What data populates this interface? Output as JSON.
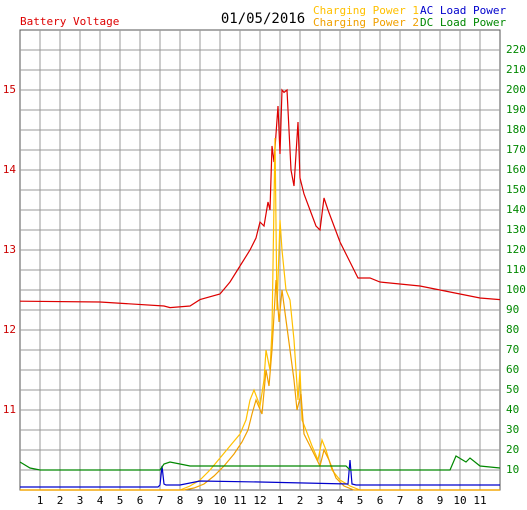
{
  "chart_data": {
    "type": "line",
    "title": "01/05/2016",
    "xlim": [
      0,
      24
    ],
    "xticks": [
      1,
      2,
      3,
      4,
      5,
      6,
      7,
      8,
      9,
      10,
      11,
      12,
      {
        "value": 13,
        "label": "1"
      },
      {
        "value": 14,
        "label": "2"
      },
      {
        "value": 15,
        "label": "3"
      },
      {
        "value": 16,
        "label": "4"
      },
      {
        "value": 17,
        "label": "5"
      },
      {
        "value": 18,
        "label": "6"
      },
      {
        "value": 19,
        "label": "7"
      },
      {
        "value": 20,
        "label": "8"
      },
      {
        "value": 21,
        "label": "9"
      },
      {
        "value": 22,
        "label": "10"
      },
      {
        "value": 23,
        "label": "11"
      }
    ],
    "ylim": [
      10,
      15.75
    ],
    "yticks": [
      11,
      12,
      13,
      14,
      15
    ],
    "y2lim": [
      0,
      230
    ],
    "y2ticks": [
      10,
      20,
      30,
      40,
      50,
      60,
      70,
      80,
      90,
      100,
      110,
      120,
      130,
      140,
      150,
      160,
      170,
      180,
      190,
      200,
      210,
      220
    ],
    "grid": true,
    "series": [
      {
        "name": "Battery Voltage",
        "color": "#dd0000",
        "axis": "y",
        "x": [
          0,
          4,
          7.2,
          7.5,
          8.5,
          9,
          10,
          10.5,
          11,
          11.5,
          11.8,
          12,
          12.2,
          12.4,
          12.5,
          12.6,
          12.7,
          12.9,
          13.0,
          13.1,
          13.2,
          13.35,
          13.45,
          13.55,
          13.7,
          13.9,
          14.0,
          14.2,
          14.5,
          14.8,
          15.0,
          15.2,
          15.4,
          15.7,
          16.0,
          16.3,
          16.6,
          16.9,
          17.5,
          18,
          20,
          22,
          23,
          24
        ],
        "values": [
          12.36,
          12.35,
          12.3,
          12.28,
          12.3,
          12.38,
          12.45,
          12.6,
          12.8,
          13.0,
          13.15,
          13.35,
          13.3,
          13.6,
          13.5,
          14.3,
          14.1,
          14.8,
          14.2,
          15.0,
          14.97,
          15.0,
          14.5,
          14.0,
          13.8,
          14.6,
          13.9,
          13.7,
          13.5,
          13.3,
          13.25,
          13.65,
          13.5,
          13.3,
          13.1,
          12.95,
          12.8,
          12.65,
          12.65,
          12.6,
          12.55,
          12.45,
          12.4,
          12.38
        ]
      },
      {
        "name": "Charging Power 1",
        "color": "#ffc000",
        "axis": "y2",
        "x": [
          0,
          8,
          8.5,
          9,
          9.5,
          10,
          10.5,
          11,
          11.3,
          11.5,
          11.7,
          12,
          12.2,
          12.3,
          12.5,
          12.6,
          12.75,
          12.85,
          13,
          13.1,
          13.3,
          13.5,
          13.7,
          13.9,
          14,
          14.1,
          14.3,
          14.6,
          14.9,
          15.1,
          15.3,
          15.6,
          16,
          16.5,
          17,
          24
        ],
        "values": [
          0,
          0,
          2,
          5,
          10,
          16,
          22,
          28,
          35,
          45,
          50,
          42,
          55,
          70,
          60,
          80,
          176,
          90,
          135,
          120,
          100,
          95,
          75,
          45,
          60,
          35,
          30,
          22,
          15,
          25,
          20,
          10,
          5,
          2,
          0,
          0
        ]
      },
      {
        "name": "Charging Power 2",
        "color": "#f0a000",
        "axis": "y2",
        "x": [
          0,
          8.2,
          8.7,
          9.2,
          9.7,
          10.2,
          10.7,
          11.1,
          11.4,
          11.6,
          11.8,
          12.1,
          12.3,
          12.45,
          12.6,
          12.8,
          12.95,
          13.1,
          13.3,
          13.5,
          13.7,
          13.85,
          14.05,
          14.2,
          14.4,
          14.7,
          15.0,
          15.2,
          15.45,
          15.8,
          16.2,
          16.7,
          24
        ],
        "values": [
          0,
          0,
          1,
          3,
          7,
          12,
          18,
          24,
          30,
          38,
          45,
          38,
          60,
          52,
          70,
          105,
          84,
          100,
          85,
          70,
          55,
          40,
          48,
          28,
          24,
          18,
          12,
          20,
          15,
          6,
          2,
          0,
          0
        ]
      },
      {
        "name": "AC Load Power",
        "color": "#0000cc",
        "axis": "y2",
        "x": [
          0,
          6.9,
          7.0,
          7.1,
          7.2,
          7.3,
          8,
          9,
          12,
          16.4,
          16.5,
          16.6,
          16.8,
          20,
          24
        ],
        "values": [
          1.5,
          1.5,
          2.5,
          12,
          3,
          2.5,
          2.5,
          4.5,
          4,
          3,
          15,
          3,
          2.5,
          2.5,
          2.5
        ]
      },
      {
        "name": "DC Load Power",
        "color": "#008800",
        "axis": "y2",
        "x": [
          0,
          0.5,
          1,
          7,
          7.2,
          7.5,
          8,
          8.5,
          12,
          16.3,
          16.5,
          21.5,
          21.8,
          22.3,
          22.5,
          23,
          24
        ],
        "values": [
          14,
          11,
          10,
          10,
          13,
          14,
          13,
          12,
          12,
          12,
          10,
          10,
          17,
          14,
          16,
          12,
          11
        ]
      }
    ]
  }
}
